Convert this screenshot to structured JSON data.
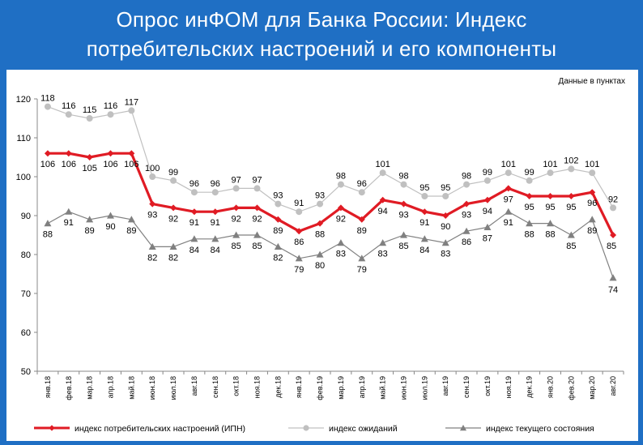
{
  "header": {
    "title_line1": "Опрос инФОМ для Банка России: Индекс",
    "title_line2": "потребительских настроений и его компоненты"
  },
  "chart_data": {
    "type": "line",
    "note": "Данные в пунктах",
    "categories": [
      "янв.18",
      "фев.18",
      "мар.18",
      "апр.18",
      "май.18",
      "июн.18",
      "июл.18",
      "авг.18",
      "сен.18",
      "окт.18",
      "ноя.18",
      "дек.18",
      "янв.19",
      "фев.19",
      "мар.19",
      "апр.19",
      "май.19",
      "июн.19",
      "июл.19",
      "авг.19",
      "сен.19",
      "окт.19",
      "ноя.19",
      "дек.19",
      "янв.20",
      "фев.20",
      "мар.20",
      "авг.20"
    ],
    "ylim": [
      50,
      120
    ],
    "yticks": [
      50,
      60,
      70,
      80,
      90,
      100,
      110,
      120
    ],
    "grid": false,
    "legend_position": "bottom",
    "series": [
      {
        "name": "индекс потребительских настроений (ИПН)",
        "color": "#e01b24",
        "marker": "diamond",
        "values": [
          106,
          106,
          105,
          106,
          106,
          93,
          92,
          91,
          91,
          92,
          92,
          89,
          86,
          88,
          92,
          89,
          94,
          93,
          91,
          90,
          93,
          94,
          97,
          95,
          95,
          95,
          96,
          85
        ],
        "labels": [
          "106",
          "106",
          "105",
          "106",
          "106",
          "93",
          "92",
          "91",
          "91",
          "92",
          "92",
          "89",
          "86",
          "88",
          "92",
          "89",
          "94",
          "93",
          "91",
          "90",
          "93",
          "94",
          "97",
          "95",
          "95",
          "95",
          "96",
          "85"
        ]
      },
      {
        "name": "индекс ожиданий",
        "color": "#c0c0c0",
        "marker": "circle",
        "values": [
          118,
          116,
          115,
          116,
          117,
          100,
          99,
          96,
          96,
          97,
          97,
          93,
          91,
          93,
          98,
          96,
          101,
          98,
          95,
          95,
          98,
          99,
          101,
          99,
          101,
          102,
          101,
          92
        ],
        "labels": [
          "118",
          "116",
          "115",
          "116",
          "117",
          "100",
          "99",
          "96",
          "96",
          "97",
          "97",
          "93",
          "91",
          "93",
          "98",
          "96",
          "101",
          "98",
          "95",
          "95",
          "98",
          "99",
          "101",
          "99",
          "101",
          "102",
          "101",
          "92"
        ]
      },
      {
        "name": "индекс текущего состояния",
        "color": "#808080",
        "marker": "triangle",
        "values": [
          88,
          91,
          89,
          90,
          89,
          82,
          82,
          84,
          84,
          85,
          85,
          82,
          79,
          80,
          83,
          79,
          83,
          85,
          84,
          83,
          86,
          87,
          91,
          88,
          88,
          85,
          89,
          74
        ],
        "labels": [
          "88",
          "91",
          "89",
          "90",
          "89",
          "82",
          "82",
          "84",
          "84",
          "85",
          "85",
          "82",
          "79",
          "80",
          "83",
          "79",
          "83",
          "85",
          "84",
          "83",
          "86",
          "87",
          "91",
          "88",
          "88",
          "85",
          "89",
          "74"
        ]
      }
    ]
  }
}
